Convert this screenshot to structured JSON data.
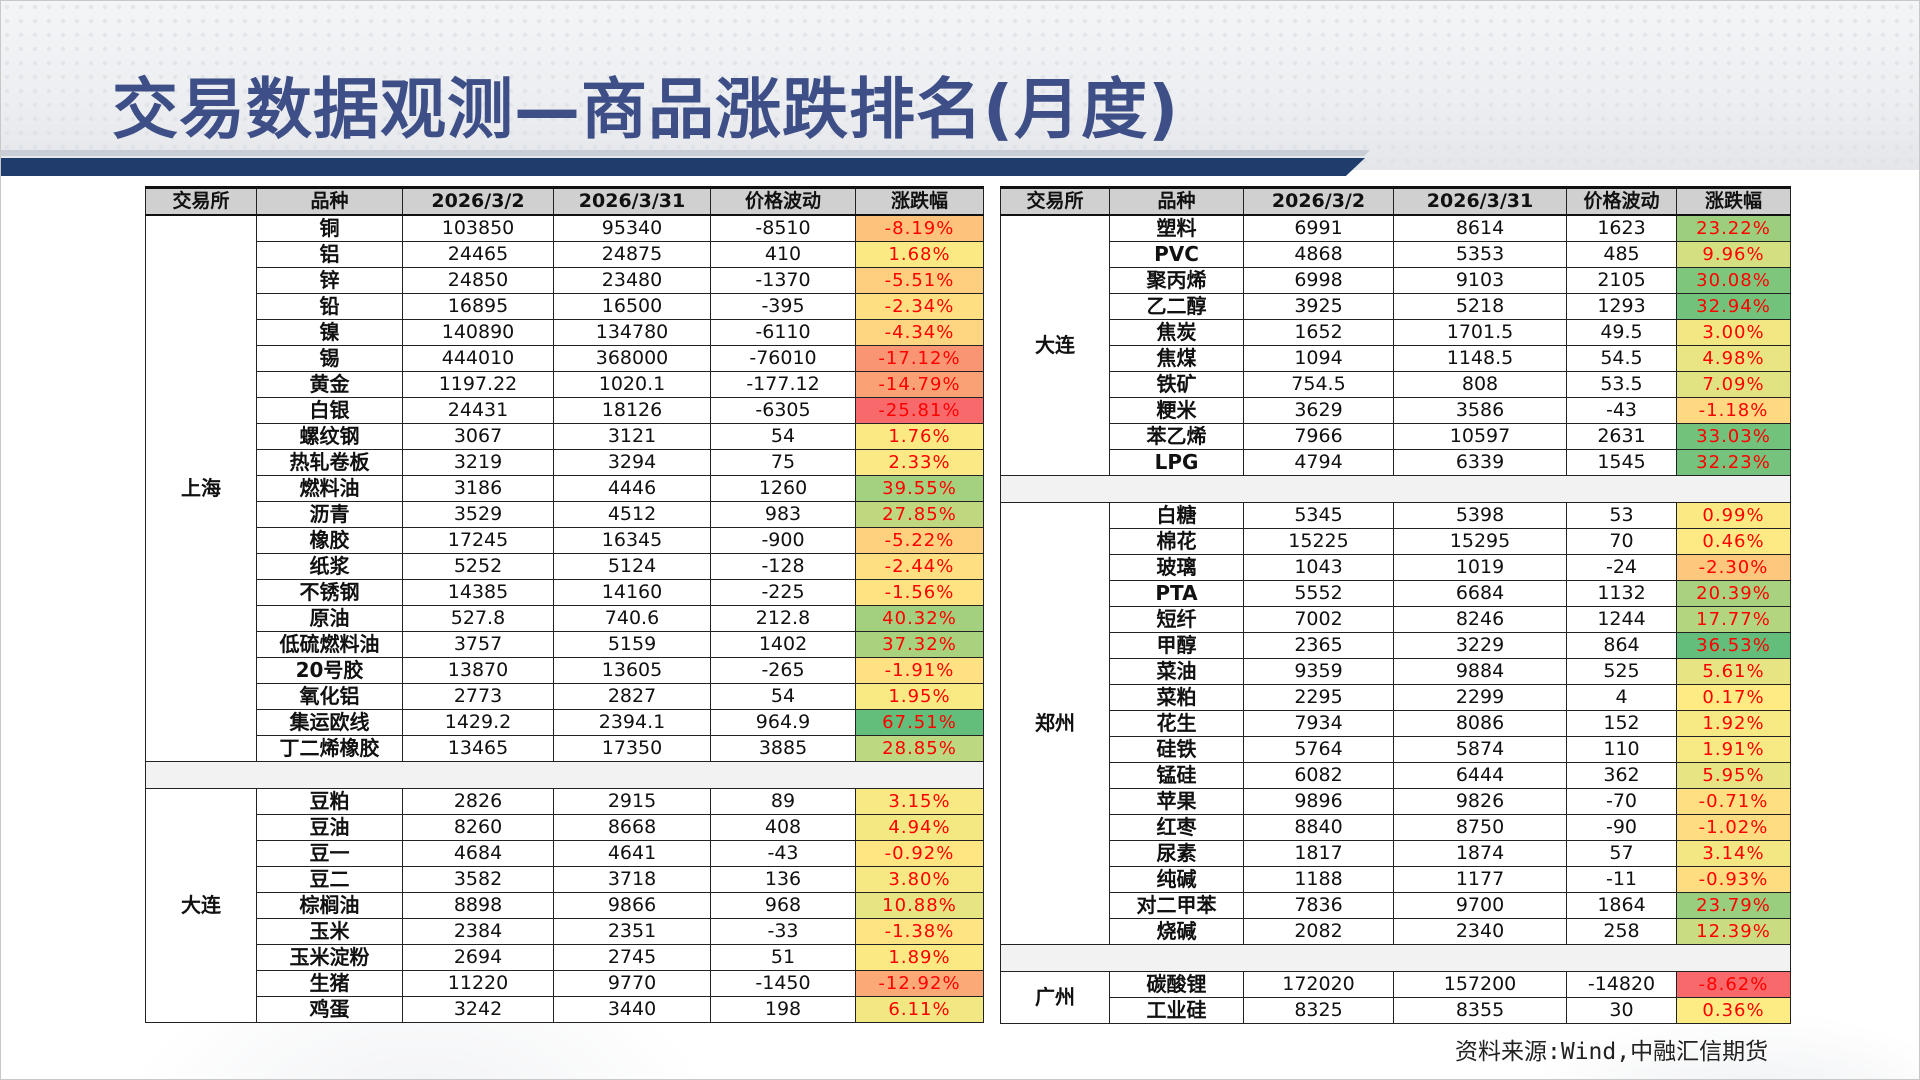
{
  "title": "交易数据观测—商品涨跌排名(月度)",
  "source": "资料来源:Wind,中融汇信期货",
  "colors": {
    "title": "#3d4f86",
    "header_stripe": "#1f3c6d",
    "pct_scale_min": "#f8696b",
    "pct_scale_mid": "#ffeb84",
    "pct_scale_max": "#63be7b",
    "pct_text": "#ff0000"
  },
  "headers": [
    "交易所",
    "品种",
    "2026/3/2",
    "2026/3/31",
    "价格波动",
    "涨跌幅"
  ],
  "left_groups": [
    {
      "exchange": "上海",
      "rows": [
        {
          "name": "铜",
          "start": "103850",
          "end": "95340",
          "chg": "-8510",
          "pct": "-8.19%",
          "v": -8.19
        },
        {
          "name": "铝",
          "start": "24465",
          "end": "24875",
          "chg": "410",
          "pct": "1.68%",
          "v": 1.68
        },
        {
          "name": "锌",
          "start": "24850",
          "end": "23480",
          "chg": "-1370",
          "pct": "-5.51%",
          "v": -5.51
        },
        {
          "name": "铅",
          "start": "16895",
          "end": "16500",
          "chg": "-395",
          "pct": "-2.34%",
          "v": -2.34
        },
        {
          "name": "镍",
          "start": "140890",
          "end": "134780",
          "chg": "-6110",
          "pct": "-4.34%",
          "v": -4.34
        },
        {
          "name": "锡",
          "start": "444010",
          "end": "368000",
          "chg": "-76010",
          "pct": "-17.12%",
          "v": -17.12
        },
        {
          "name": "黄金",
          "start": "1197.22",
          "end": "1020.1",
          "chg": "-177.12",
          "pct": "-14.79%",
          "v": -14.79
        },
        {
          "name": "白银",
          "start": "24431",
          "end": "18126",
          "chg": "-6305",
          "pct": "-25.81%",
          "v": -25.81
        },
        {
          "name": "螺纹钢",
          "start": "3067",
          "end": "3121",
          "chg": "54",
          "pct": "1.76%",
          "v": 1.76
        },
        {
          "name": "热轧卷板",
          "start": "3219",
          "end": "3294",
          "chg": "75",
          "pct": "2.33%",
          "v": 2.33
        },
        {
          "name": "燃料油",
          "start": "3186",
          "end": "4446",
          "chg": "1260",
          "pct": "39.55%",
          "v": 39.55
        },
        {
          "name": "沥青",
          "start": "3529",
          "end": "4512",
          "chg": "983",
          "pct": "27.85%",
          "v": 27.85
        },
        {
          "name": "橡胶",
          "start": "17245",
          "end": "16345",
          "chg": "-900",
          "pct": "-5.22%",
          "v": -5.22
        },
        {
          "name": "纸浆",
          "start": "5252",
          "end": "5124",
          "chg": "-128",
          "pct": "-2.44%",
          "v": -2.44
        },
        {
          "name": "不锈钢",
          "start": "14385",
          "end": "14160",
          "chg": "-225",
          "pct": "-1.56%",
          "v": -1.56
        },
        {
          "name": "原油",
          "start": "527.8",
          "end": "740.6",
          "chg": "212.8",
          "pct": "40.32%",
          "v": 40.32
        },
        {
          "name": "低硫燃料油",
          "start": "3757",
          "end": "5159",
          "chg": "1402",
          "pct": "37.32%",
          "v": 37.32
        },
        {
          "name": "20号胶",
          "start": "13870",
          "end": "13605",
          "chg": "-265",
          "pct": "-1.91%",
          "v": -1.91
        },
        {
          "name": "氧化铝",
          "start": "2773",
          "end": "2827",
          "chg": "54",
          "pct": "1.95%",
          "v": 1.95
        },
        {
          "name": "集运欧线",
          "start": "1429.2",
          "end": "2394.1",
          "chg": "964.9",
          "pct": "67.51%",
          "v": 67.51
        },
        {
          "name": "丁二烯橡胶",
          "start": "13465",
          "end": "17350",
          "chg": "3885",
          "pct": "28.85%",
          "v": 28.85
        }
      ]
    },
    {
      "exchange": "大连",
      "rows": [
        {
          "name": "豆粕",
          "start": "2826",
          "end": "2915",
          "chg": "89",
          "pct": "3.15%",
          "v": 3.15
        },
        {
          "name": "豆油",
          "start": "8260",
          "end": "8668",
          "chg": "408",
          "pct": "4.94%",
          "v": 4.94
        },
        {
          "name": "豆一",
          "start": "4684",
          "end": "4641",
          "chg": "-43",
          "pct": "-0.92%",
          "v": -0.92
        },
        {
          "name": "豆二",
          "start": "3582",
          "end": "3718",
          "chg": "136",
          "pct": "3.80%",
          "v": 3.8
        },
        {
          "name": "棕榈油",
          "start": "8898",
          "end": "9866",
          "chg": "968",
          "pct": "10.88%",
          "v": 10.88
        },
        {
          "name": "玉米",
          "start": "2384",
          "end": "2351",
          "chg": "-33",
          "pct": "-1.38%",
          "v": -1.38
        },
        {
          "name": "玉米淀粉",
          "start": "2694",
          "end": "2745",
          "chg": "51",
          "pct": "1.89%",
          "v": 1.89
        },
        {
          "name": "生猪",
          "start": "11220",
          "end": "9770",
          "chg": "-1450",
          "pct": "-12.92%",
          "v": -12.92
        },
        {
          "name": "鸡蛋",
          "start": "3242",
          "end": "3440",
          "chg": "198",
          "pct": "6.11%",
          "v": 6.11
        }
      ]
    }
  ],
  "right_groups": [
    {
      "exchange": "大连",
      "rows": [
        {
          "name": "塑料",
          "start": "6991",
          "end": "8614",
          "chg": "1623",
          "pct": "23.22%",
          "v": 23.22
        },
        {
          "name": "PVC",
          "start": "4868",
          "end": "5353",
          "chg": "485",
          "pct": "9.96%",
          "v": 9.96
        },
        {
          "name": "聚丙烯",
          "start": "6998",
          "end": "9103",
          "chg": "2105",
          "pct": "30.08%",
          "v": 30.08
        },
        {
          "name": "乙二醇",
          "start": "3925",
          "end": "5218",
          "chg": "1293",
          "pct": "32.94%",
          "v": 32.94
        },
        {
          "name": "焦炭",
          "start": "1652",
          "end": "1701.5",
          "chg": "49.5",
          "pct": "3.00%",
          "v": 3.0
        },
        {
          "name": "焦煤",
          "start": "1094",
          "end": "1148.5",
          "chg": "54.5",
          "pct": "4.98%",
          "v": 4.98
        },
        {
          "name": "铁矿",
          "start": "754.5",
          "end": "808",
          "chg": "53.5",
          "pct": "7.09%",
          "v": 7.09
        },
        {
          "name": "粳米",
          "start": "3629",
          "end": "3586",
          "chg": "-43",
          "pct": "-1.18%",
          "v": -1.18
        },
        {
          "name": "苯乙烯",
          "start": "7966",
          "end": "10597",
          "chg": "2631",
          "pct": "33.03%",
          "v": 33.03
        },
        {
          "name": "LPG",
          "start": "4794",
          "end": "6339",
          "chg": "1545",
          "pct": "32.23%",
          "v": 32.23
        }
      ]
    },
    {
      "exchange": "郑州",
      "rows": [
        {
          "name": "白糖",
          "start": "5345",
          "end": "5398",
          "chg": "53",
          "pct": "0.99%",
          "v": 0.99
        },
        {
          "name": "棉花",
          "start": "15225",
          "end": "15295",
          "chg": "70",
          "pct": "0.46%",
          "v": 0.46
        },
        {
          "name": "玻璃",
          "start": "1043",
          "end": "1019",
          "chg": "-24",
          "pct": "-2.30%",
          "v": -2.3
        },
        {
          "name": "PTA",
          "start": "5552",
          "end": "6684",
          "chg": "1132",
          "pct": "20.39%",
          "v": 20.39
        },
        {
          "name": "短纤",
          "start": "7002",
          "end": "8246",
          "chg": "1244",
          "pct": "17.77%",
          "v": 17.77
        },
        {
          "name": "甲醇",
          "start": "2365",
          "end": "3229",
          "chg": "864",
          "pct": "36.53%",
          "v": 36.53
        },
        {
          "name": "菜油",
          "start": "9359",
          "end": "9884",
          "chg": "525",
          "pct": "5.61%",
          "v": 5.61
        },
        {
          "name": "菜粕",
          "start": "2295",
          "end": "2299",
          "chg": "4",
          "pct": "0.17%",
          "v": 0.17
        },
        {
          "name": "花生",
          "start": "7934",
          "end": "8086",
          "chg": "152",
          "pct": "1.92%",
          "v": 1.92
        },
        {
          "name": "硅铁",
          "start": "5764",
          "end": "5874",
          "chg": "110",
          "pct": "1.91%",
          "v": 1.91
        },
        {
          "name": "锰硅",
          "start": "6082",
          "end": "6444",
          "chg": "362",
          "pct": "5.95%",
          "v": 5.95
        },
        {
          "name": "苹果",
          "start": "9896",
          "end": "9826",
          "chg": "-70",
          "pct": "-0.71%",
          "v": -0.71
        },
        {
          "name": "红枣",
          "start": "8840",
          "end": "8750",
          "chg": "-90",
          "pct": "-1.02%",
          "v": -1.02
        },
        {
          "name": "尿素",
          "start": "1817",
          "end": "1874",
          "chg": "57",
          "pct": "3.14%",
          "v": 3.14
        },
        {
          "name": "纯碱",
          "start": "1188",
          "end": "1177",
          "chg": "-11",
          "pct": "-0.93%",
          "v": -0.93
        },
        {
          "name": "对二甲苯",
          "start": "7836",
          "end": "9700",
          "chg": "1864",
          "pct": "23.79%",
          "v": 23.79
        },
        {
          "name": "烧碱",
          "start": "2082",
          "end": "2340",
          "chg": "258",
          "pct": "12.39%",
          "v": 12.39
        }
      ]
    },
    {
      "exchange": "广州",
      "rows": [
        {
          "name": "碳酸锂",
          "start": "172020",
          "end": "157200",
          "chg": "-14820",
          "pct": "-8.62%",
          "v": -8.62
        },
        {
          "name": "工业硅",
          "start": "8325",
          "end": "8355",
          "chg": "30",
          "pct": "0.36%",
          "v": 0.36
        }
      ]
    }
  ]
}
